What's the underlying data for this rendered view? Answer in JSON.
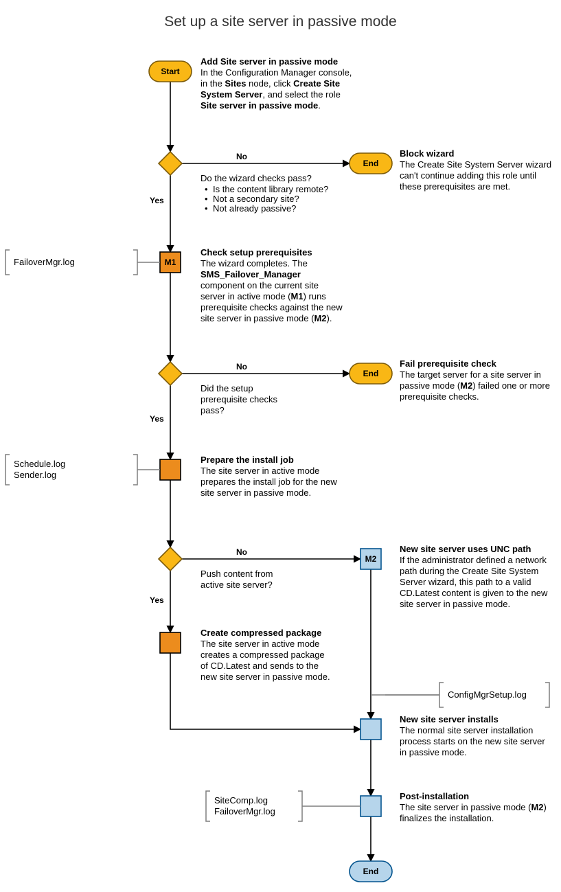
{
  "title": "Set up a site server in passive mode",
  "colors": {
    "yellow_fill": "#f9b715",
    "yellow_stroke": "#7c5b0b",
    "orange_fill": "#ec8c1d",
    "orange_stroke": "#000000",
    "blue_fill": "#b6d5eb",
    "blue_stroke": "#05558f",
    "line": "#000000",
    "bracket": "#7f7f7f"
  },
  "sizing": {
    "terminator_w": 62,
    "terminator_h": 30,
    "process_w": 30,
    "process_h": 30,
    "diamond_size": 34,
    "stroke_width": 1.6,
    "arrow_marker": 7
  },
  "fontsizes": {
    "title": 21,
    "node": 12,
    "step_title": 13,
    "step_body": 13,
    "edge": 12,
    "log": 13
  },
  "nodes": {
    "start": {
      "label": "Start",
      "type": "terminator-yellow"
    },
    "d1": {
      "type": "decision-yellow"
    },
    "end1": {
      "label": "End",
      "type": "terminator-yellow"
    },
    "m1": {
      "label": "M1",
      "type": "process-orange"
    },
    "d2": {
      "type": "decision-yellow"
    },
    "end2": {
      "label": "End",
      "type": "terminator-yellow"
    },
    "p3": {
      "type": "process-orange"
    },
    "d3": {
      "type": "decision-yellow"
    },
    "m2": {
      "label": "M2",
      "type": "process-blue"
    },
    "p4": {
      "type": "process-orange"
    },
    "p5": {
      "type": "process-blue"
    },
    "p6": {
      "type": "process-blue"
    },
    "end3": {
      "label": "End",
      "type": "terminator-blue"
    }
  },
  "edges": {
    "yes": "Yes",
    "no": "No"
  },
  "steps": {
    "s1": {
      "title": "Add Site server in passive mode",
      "lines": [
        "In the Configuration Manager console,",
        "in the <b>Sites</b> node, click <b>Create Site</b>",
        "<b>System Server</b>, and select the role",
        "<b>Site server in passive mode</b>."
      ]
    },
    "d1q": {
      "title": "Do the wizard checks pass?",
      "bullets": [
        "Is the content library remote?",
        "Not a secondary site?",
        "Not already passive?"
      ]
    },
    "s2": {
      "title": "Block wizard",
      "lines": [
        "The Create Site System Server wizard",
        "can't continue adding this role until",
        "these prerequisites are met."
      ]
    },
    "s3": {
      "title": "Check setup prerequisites",
      "lines": [
        "The wizard completes. The",
        "<b>SMS_Failover_Manager</b>",
        "component on the current site",
        "server in active mode (<b>M1</b>) runs",
        "prerequisite checks against the new",
        "site server in passive mode (<b>M2</b>)."
      ]
    },
    "d2q": {
      "title": "",
      "lines": [
        "Did the setup",
        "prerequisite checks",
        "pass?"
      ]
    },
    "s4": {
      "title": "Fail prerequisite check",
      "lines": [
        "The target server for a site server in",
        "passive mode (<b>M2</b>) failed one or more",
        "prerequisite checks."
      ]
    },
    "s5": {
      "title": "Prepare the install job",
      "lines": [
        "The site server in active mode",
        "prepares the install job for the new",
        "site server in passive mode."
      ]
    },
    "d3q": {
      "title": "",
      "lines": [
        "Push content from",
        "active site server?"
      ]
    },
    "s6": {
      "title": "New site server uses UNC path",
      "lines": [
        "If the administrator defined a network",
        "path during the Create Site System",
        "Server wizard, this path to a valid",
        "CD.Latest content is given to the new",
        "site server in passive mode."
      ]
    },
    "s7": {
      "title": "Create compressed package",
      "lines": [
        "The site server in active mode",
        "creates a compressed package",
        "of CD.Latest and sends to the",
        "new site server in passive mode."
      ]
    },
    "s8": {
      "title": "New site server installs",
      "lines": [
        "The normal site server installation",
        "process starts on the new site server",
        "in passive mode."
      ]
    },
    "s9": {
      "title": "Post-installation",
      "lines": [
        "The site server in passive mode (<b>M2</b>)",
        "finalizes the installation."
      ]
    }
  },
  "logs": {
    "l1": [
      "FailoverMgr.log"
    ],
    "l2": [
      "Schedule.log",
      "Sender.log"
    ],
    "l3": [
      "ConfigMgrSetup.log"
    ],
    "l4": [
      "SiteComp.log",
      "FailoverMgr.log"
    ]
  },
  "layout": {
    "col_main": 248,
    "col_right": 540,
    "col_text1": 292,
    "col_text2": 582,
    "y": {
      "start": 30,
      "d1": 164,
      "end1": 164,
      "m1": 308,
      "d2": 470,
      "end2": 470,
      "p3": 610,
      "d3": 740,
      "m2": 740,
      "p4": 862,
      "p5": 988,
      "p6": 1100,
      "end3": 1195
    }
  }
}
